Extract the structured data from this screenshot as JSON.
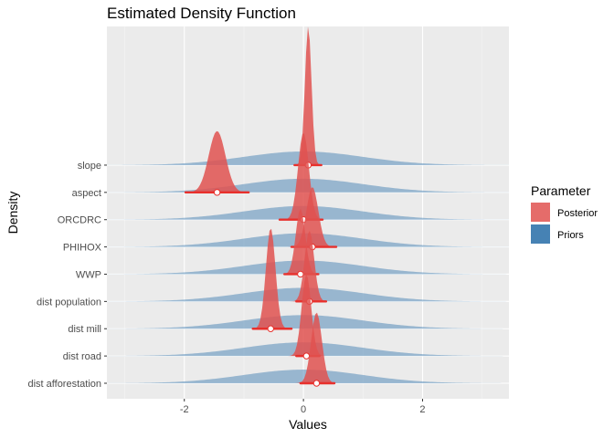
{
  "chart_data": {
    "type": "ridgeline",
    "title": "Estimated Density Function",
    "xlabel": "Values",
    "ylabel": "Density",
    "xlim": [
      -3.3,
      3.45
    ],
    "x_ticks": [
      -2,
      0,
      2
    ],
    "x_tick_labels": [
      "-2",
      "0",
      "2"
    ],
    "grid": true,
    "legend_title": "Parameter",
    "legend_position": "right",
    "colors": {
      "Posterior": "#e05250",
      "Priors": "#4682b4",
      "interval": "#e8302c"
    },
    "legend": [
      {
        "name": "Posterior",
        "color": "#e05250"
      },
      {
        "name": "Priors",
        "color": "#4682b4"
      }
    ],
    "prior": {
      "mean": 0,
      "sd": 1
    },
    "categories": [
      "dist afforestation",
      "dist road",
      "dist mill",
      "dist population",
      "WWP",
      "PHIHOX",
      "ORCDRC",
      "aspect",
      "slope"
    ],
    "series": [
      {
        "name": "dist afforestation",
        "posterior_mean": 0.22,
        "posterior_sd": 0.09,
        "interval": [
          -0.05,
          0.52
        ],
        "posterior_peak_rows": 2.6
      },
      {
        "name": "dist road",
        "posterior_mean": 0.05,
        "posterior_sd": 0.08,
        "interval": [
          -0.12,
          0.27
        ],
        "posterior_peak_rows": 3.0
      },
      {
        "name": "dist mill",
        "posterior_mean": -0.55,
        "posterior_sd": 0.08,
        "interval": [
          -0.85,
          -0.2
        ],
        "posterior_peak_rows": 3.7
      },
      {
        "name": "dist population",
        "posterior_mean": 0.1,
        "posterior_sd": 0.08,
        "interval": [
          -0.12,
          0.38
        ],
        "posterior_peak_rows": 2.6
      },
      {
        "name": "WWP",
        "posterior_mean": -0.05,
        "posterior_sd": 0.08,
        "interval": [
          -0.32,
          0.25
        ],
        "posterior_peak_rows": 2.4
      },
      {
        "name": "PHIHOX",
        "posterior_mean": 0.15,
        "posterior_sd": 0.1,
        "interval": [
          -0.2,
          0.55
        ],
        "posterior_peak_rows": 2.2
      },
      {
        "name": "ORCDRC",
        "posterior_mean": 0.0,
        "posterior_sd": 0.09,
        "interval": [
          -0.4,
          0.32
        ],
        "posterior_peak_rows": 3.2
      },
      {
        "name": "aspect",
        "posterior_mean": -1.45,
        "posterior_sd": 0.14,
        "interval": [
          -1.98,
          -0.92
        ],
        "posterior_peak_rows": 2.25
      },
      {
        "name": "slope",
        "posterior_mean": 0.08,
        "posterior_sd": 0.055,
        "interval": [
          -0.15,
          0.3
        ],
        "posterior_peak_rows": 5.1
      }
    ]
  }
}
